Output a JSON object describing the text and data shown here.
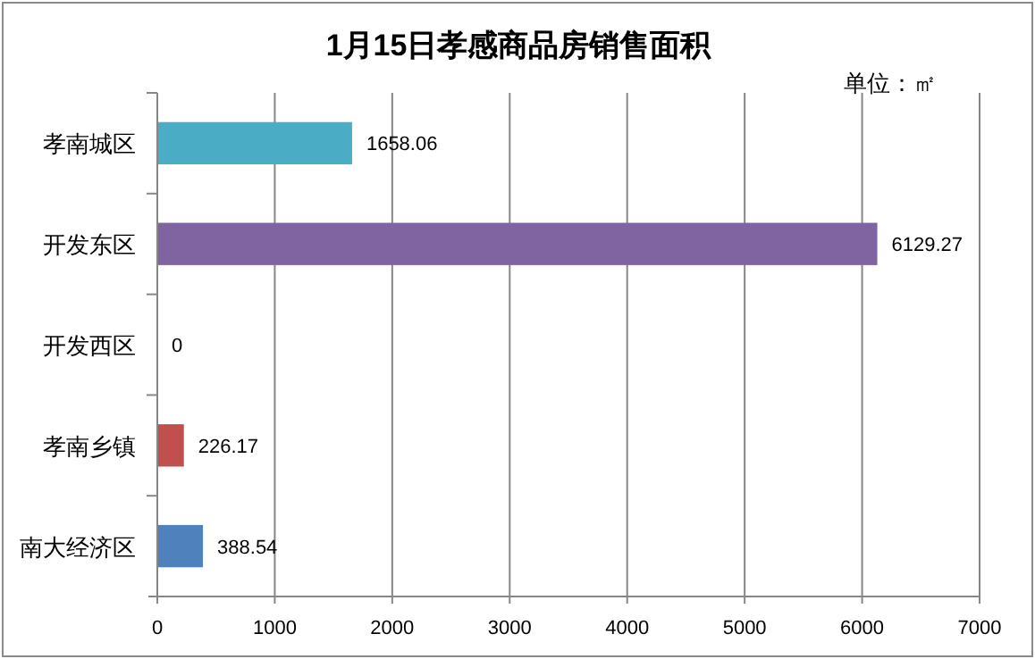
{
  "chart_data": {
    "type": "bar",
    "orientation": "horizontal",
    "title": "1月15日孝感商品房销售面积",
    "categories": [
      "孝南城区",
      "开发东区",
      "开发西区",
      "孝南乡镇",
      "南大经济区"
    ],
    "values": [
      1658.06,
      6129.27,
      0,
      226.17,
      388.54
    ],
    "colors": [
      "#4bacc6",
      "#8064a2",
      "#9bbb59",
      "#c0504d",
      "#4f81bd"
    ],
    "xlim": [
      0,
      7000
    ],
    "xticks": [
      0,
      1000,
      2000,
      3000,
      4000,
      5000,
      6000,
      7000
    ],
    "grid": "x",
    "data_labels": true,
    "annotations": [
      "单位：㎡"
    ]
  }
}
